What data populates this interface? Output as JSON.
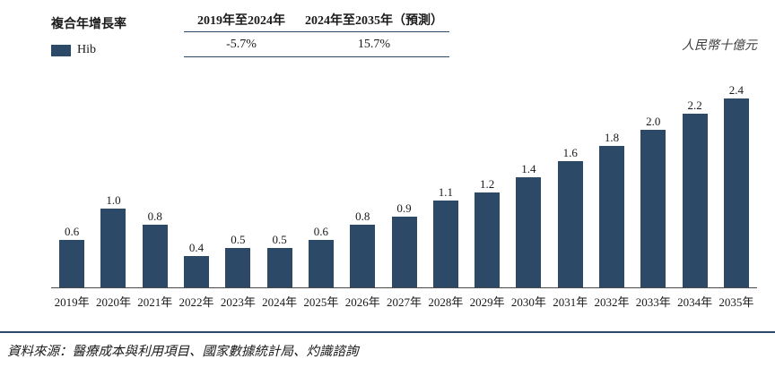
{
  "cagr_table": {
    "row_label": "複合年增長率",
    "col1_header": "2019年至2024年",
    "col2_header": "2024年至2035年（預測）",
    "legend_label": "Hib",
    "col1_value": "-5.7%",
    "col2_value": "15.7%"
  },
  "unit_label": "人民幣十億元",
  "source_text": "資料來源：醫療成本與利用項目、國家數據統計局、灼識諮詢",
  "colors": {
    "bar": "#2c4a68",
    "rule": "#2c4a68",
    "axis": "#4a4a4a"
  },
  "chart_data": {
    "type": "bar",
    "title": "",
    "series_name": "Hib",
    "categories": [
      "2019年",
      "2020年",
      "2021年",
      "2022年",
      "2023年",
      "2024年",
      "2025年",
      "2026年",
      "2027年",
      "2028年",
      "2029年",
      "2030年",
      "2031年",
      "2032年",
      "2033年",
      "2034年",
      "2035年"
    ],
    "values": [
      0.6,
      1.0,
      0.8,
      0.4,
      0.5,
      0.5,
      0.6,
      0.8,
      0.9,
      1.1,
      1.2,
      1.4,
      1.6,
      1.8,
      2.0,
      2.2,
      2.4
    ],
    "xlabel": "",
    "ylabel": "人民幣十億元",
    "ylim": [
      0,
      2.6
    ],
    "grid": false,
    "legend_position": "top-left",
    "cagr_2019_2024": "-5.7%",
    "cagr_2024_2035": "15.7%"
  }
}
